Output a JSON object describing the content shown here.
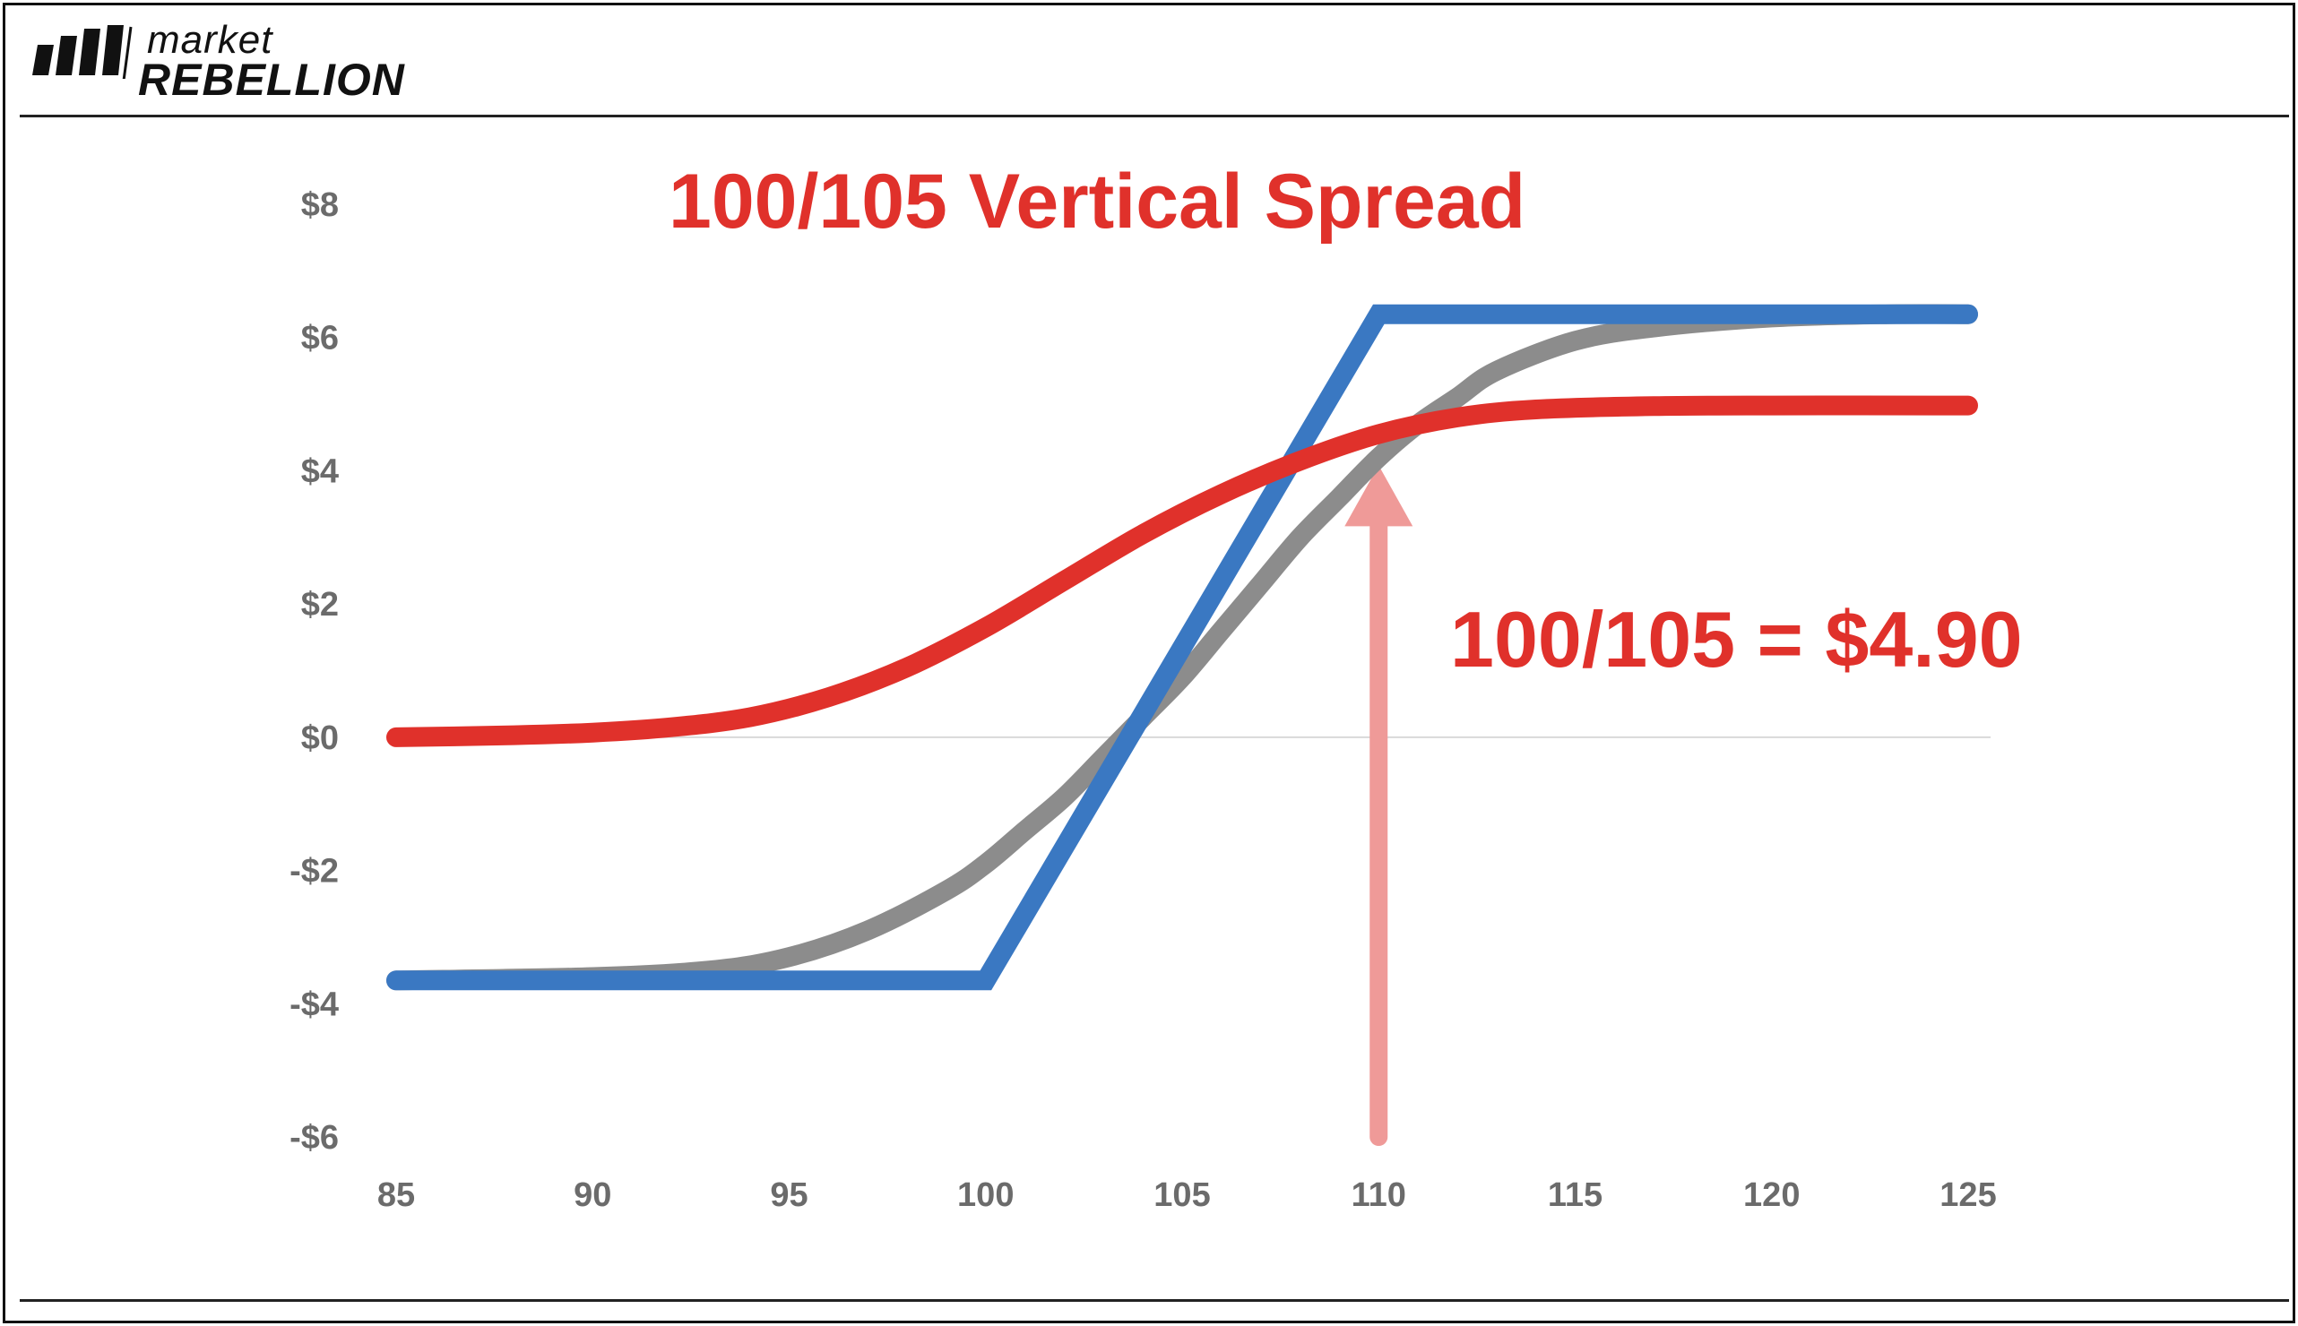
{
  "brand": {
    "line1": "market",
    "line2": "REBELLION"
  },
  "chart_data": {
    "type": "line",
    "title": "100/105 Vertical Spread",
    "xlabel": "",
    "ylabel": "",
    "xlim": [
      85,
      125
    ],
    "ylim": [
      -6,
      8
    ],
    "x_ticks": [
      85,
      90,
      95,
      100,
      105,
      110,
      115,
      120,
      125
    ],
    "x_tick_labels": [
      "85",
      "90",
      "95",
      "100",
      "105",
      "110",
      "115",
      "120",
      "125"
    ],
    "y_ticks": [
      8,
      6,
      4,
      2,
      0,
      -2,
      -4,
      -6
    ],
    "y_tick_labels": [
      "$8",
      "$6",
      "$4",
      "$2",
      "$0",
      "-$2",
      "-$4",
      "-$6"
    ],
    "zero_line": true,
    "series": [
      {
        "color": "#8c8c8c",
        "x": [
          85,
          90,
          93,
          95,
          97,
          99,
          100,
          101,
          102,
          103,
          104,
          105,
          106,
          107,
          108,
          109,
          110,
          111,
          112,
          113,
          115,
          117,
          120,
          123,
          125
        ],
        "y": [
          -3.65,
          -3.6,
          -3.5,
          -3.3,
          -2.9,
          -2.3,
          -1.9,
          -1.4,
          -0.9,
          -0.3,
          0.3,
          0.9,
          1.6,
          2.3,
          3.0,
          3.6,
          4.2,
          4.7,
          5.1,
          5.5,
          5.95,
          6.15,
          6.3,
          6.35,
          6.35
        ]
      },
      {
        "color": "#3a78c2",
        "x": [
          85,
          100,
          110,
          125
        ],
        "y": [
          -3.65,
          -3.65,
          6.35,
          6.35
        ]
      },
      {
        "color": "#e0312b",
        "x": [
          85,
          88,
          90,
          92,
          94,
          96,
          98,
          100,
          102,
          104,
          106,
          108,
          110,
          112,
          114,
          117,
          120,
          125
        ],
        "y": [
          0.0,
          0.03,
          0.07,
          0.15,
          0.3,
          0.6,
          1.05,
          1.65,
          2.35,
          3.05,
          3.65,
          4.15,
          4.55,
          4.8,
          4.92,
          4.97,
          4.98,
          4.98
        ]
      }
    ],
    "annotations": [
      {
        "text": "100/105 = $4.90",
        "arrow_x": 110,
        "arrow_from_y": -6,
        "arrow_to_y": 4.0,
        "color": "#e0312b",
        "arrow_color": "#ef9a98"
      }
    ]
  }
}
